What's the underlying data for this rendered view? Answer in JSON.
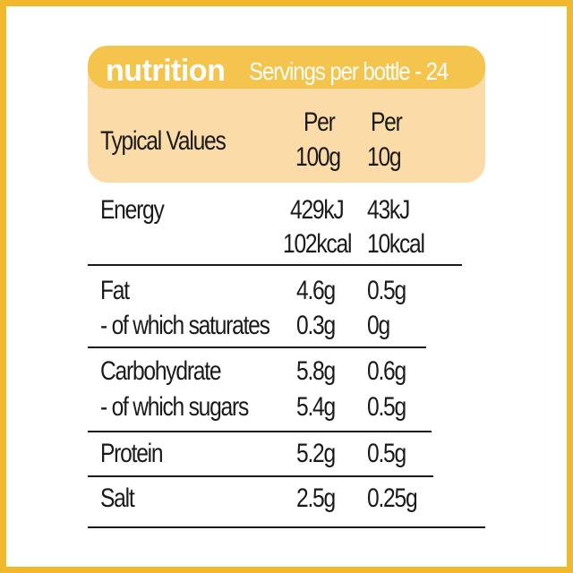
{
  "header": {
    "title": "nutrition",
    "servings": "Servings per bottle - 24"
  },
  "columns": {
    "label": "Typical Values",
    "per100_line1": "Per",
    "per100_line2": "100g",
    "per10_line1": "Per",
    "per10_line2": "10g"
  },
  "rows": {
    "energy": {
      "label": "Energy",
      "kj100": "429kJ",
      "kcal100": "102kcal",
      "kj10": "43kJ",
      "kcal10": "10kcal"
    },
    "fat": {
      "label": "Fat",
      "v100": "4.6g",
      "v10": "0.5g"
    },
    "saturates": {
      "label": "- of which saturates",
      "v100": "0.3g",
      "v10": "0g"
    },
    "carbohydrate": {
      "label": "Carbohydrate",
      "v100": "5.8g",
      "v10": "0.6g"
    },
    "sugars": {
      "label": "- of which sugars",
      "v100": "5.4g",
      "v10": "0.5g"
    },
    "protein": {
      "label": "Protein",
      "v100": "5.2g",
      "v10": "0.5g"
    },
    "salt": {
      "label": "Salt",
      "v100": "2.5g",
      "v10": "0.25g"
    }
  },
  "colors": {
    "frame": "#f2b82c",
    "header_bar": "#f5c44d",
    "subheader_bg": "#fbdca8",
    "text": "#1a1a1a"
  }
}
